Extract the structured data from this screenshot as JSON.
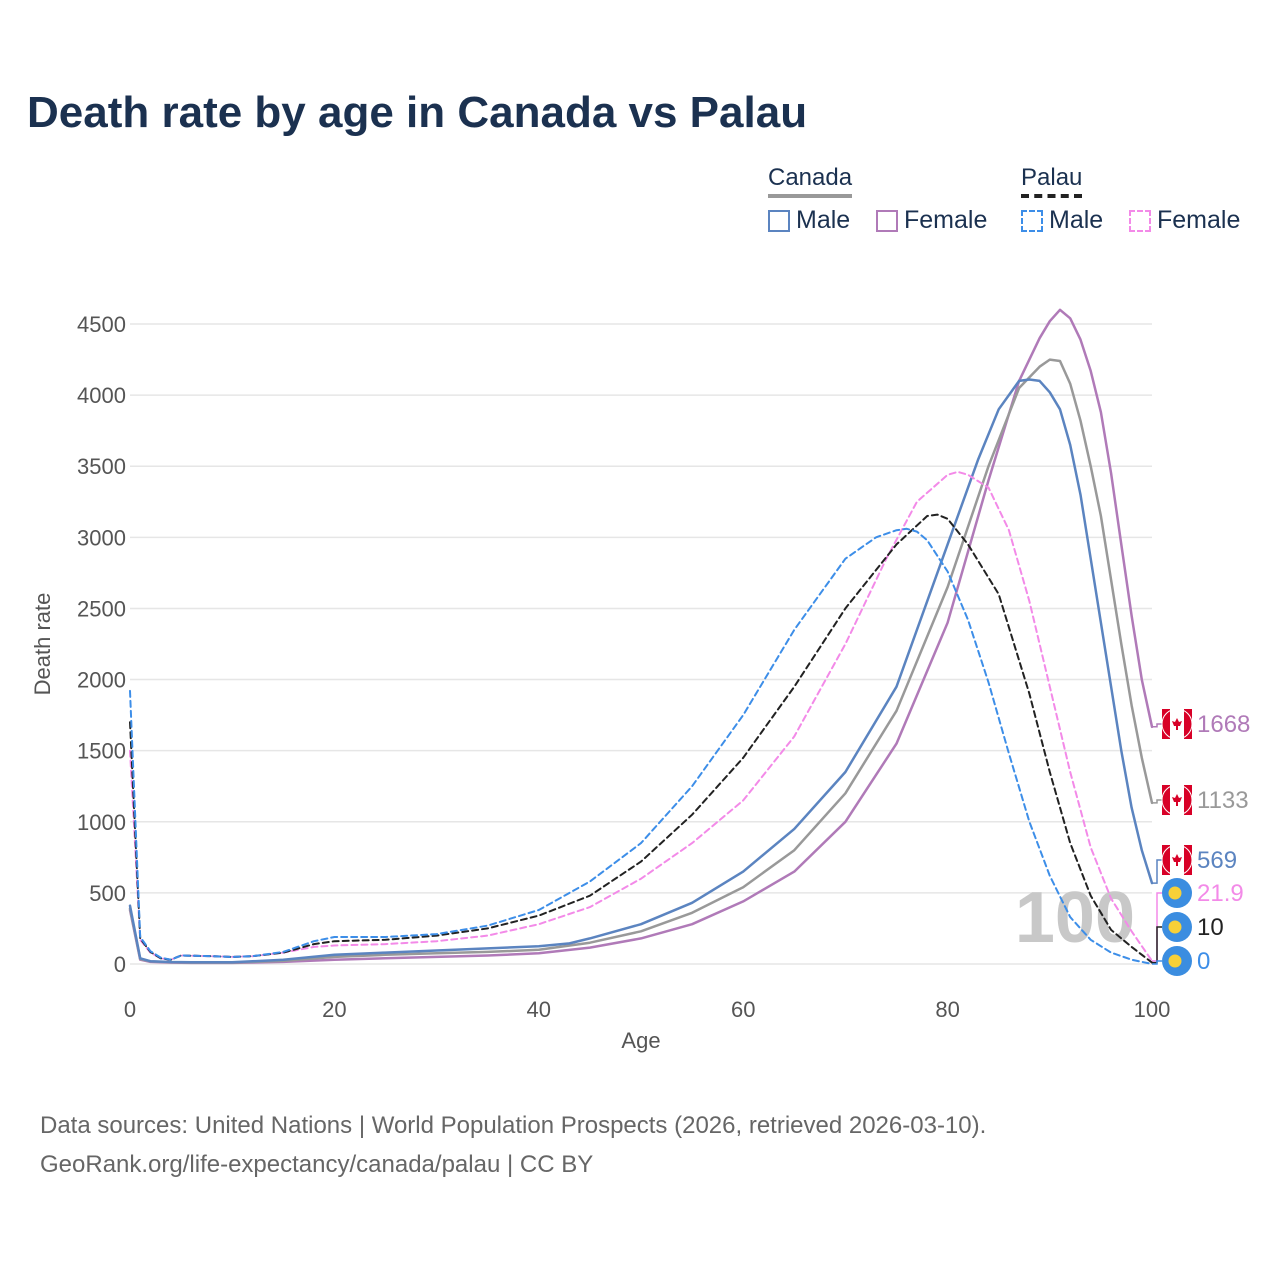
{
  "title": "Death rate by age in Canada vs Palau",
  "legend": {
    "groups": [
      {
        "label": "Canada",
        "style": "solid"
      },
      {
        "label": "Palau",
        "style": "dashed"
      }
    ],
    "items": [
      {
        "group": "Canada",
        "label": "Male",
        "color": "#5b84c0"
      },
      {
        "group": "Canada",
        "label": "Female",
        "color": "#b07ab8"
      },
      {
        "group": "Palau",
        "label": "Male",
        "color": "#3d8ee8"
      },
      {
        "group": "Palau",
        "label": "Female",
        "color": "#f38ae8"
      }
    ]
  },
  "watermark": "100",
  "source": {
    "line1": "Data sources: United Nations | World Population Prospects (2026, retrieved 2026-03-10).",
    "line2": "GeoRank.org/life-expectancy/canada/palau | CC BY"
  },
  "chart_data": {
    "type": "line",
    "xlabel": "Age",
    "ylabel": "Death rate",
    "xlim": [
      0,
      100
    ],
    "ylim": [
      0,
      4700
    ],
    "xticks": [
      0,
      20,
      40,
      60,
      80,
      100
    ],
    "yticks": [
      0,
      500,
      1000,
      1500,
      2000,
      2500,
      3000,
      3500,
      4000,
      4500
    ],
    "grid": true,
    "series": [
      {
        "name": "Canada Female",
        "country": "Canada",
        "sex": "Female",
        "color": "#b07ab8",
        "dashed": false,
        "end_label": "1668",
        "flag": "canada",
        "x": [
          0,
          1,
          2,
          4,
          6,
          10,
          15,
          20,
          25,
          30,
          35,
          40,
          45,
          50,
          55,
          60,
          65,
          70,
          75,
          80,
          84,
          87,
          89,
          90,
          91,
          92,
          93,
          94,
          95,
          96,
          97,
          98,
          99,
          100
        ],
        "y": [
          380,
          30,
          15,
          10,
          8,
          8,
          15,
          30,
          40,
          50,
          60,
          75,
          115,
          180,
          280,
          440,
          650,
          1000,
          1550,
          2400,
          3400,
          4100,
          4400,
          4520,
          4600,
          4540,
          4390,
          4170,
          3880,
          3450,
          2950,
          2450,
          2000,
          1668
        ]
      },
      {
        "name": "Canada Total",
        "country": "Canada",
        "sex": "Total",
        "color": "#999999",
        "dashed": false,
        "end_label": "1133",
        "flag": "canada",
        "x": [
          0,
          1,
          2,
          4,
          6,
          10,
          15,
          20,
          25,
          30,
          35,
          40,
          45,
          50,
          55,
          60,
          65,
          70,
          75,
          80,
          84,
          87,
          89,
          90,
          91,
          92,
          93,
          94,
          95,
          96,
          97,
          98,
          99,
          100
        ],
        "y": [
          390,
          35,
          18,
          12,
          10,
          10,
          22,
          50,
          65,
          75,
          85,
          100,
          150,
          230,
          360,
          540,
          800,
          1200,
          1780,
          2650,
          3500,
          4050,
          4200,
          4250,
          4240,
          4080,
          3820,
          3500,
          3150,
          2700,
          2250,
          1820,
          1450,
          1133
        ]
      },
      {
        "name": "Canada Male",
        "country": "Canada",
        "sex": "Male",
        "color": "#5b84c0",
        "dashed": false,
        "end_label": "569",
        "flag": "canada",
        "x": [
          0,
          1,
          2,
          4,
          6,
          10,
          15,
          20,
          25,
          30,
          35,
          40,
          43,
          45,
          50,
          55,
          60,
          65,
          70,
          75,
          80,
          83,
          85,
          87,
          88,
          89,
          90,
          91,
          92,
          93,
          94,
          95,
          96,
          97,
          98,
          99,
          100
        ],
        "y": [
          410,
          40,
          20,
          14,
          12,
          12,
          30,
          65,
          80,
          95,
          110,
          125,
          145,
          180,
          280,
          430,
          650,
          950,
          1350,
          1950,
          2950,
          3550,
          3900,
          4100,
          4110,
          4100,
          4020,
          3900,
          3650,
          3300,
          2850,
          2400,
          1950,
          1500,
          1100,
          800,
          569
        ]
      },
      {
        "name": "Palau Female",
        "country": "Palau",
        "sex": "Female",
        "color": "#f38ae8",
        "dashed": true,
        "end_label": "21.9",
        "flag": "palau",
        "x": [
          0,
          1,
          2,
          3,
          4,
          5,
          8,
          10,
          12,
          15,
          18,
          20,
          25,
          30,
          35,
          40,
          45,
          50,
          55,
          60,
          65,
          70,
          74,
          77,
          80,
          81,
          82,
          84,
          86,
          88,
          90,
          92,
          94,
          96,
          98,
          100
        ],
        "y": [
          1500,
          170,
          80,
          40,
          30,
          60,
          55,
          50,
          55,
          80,
          120,
          130,
          140,
          160,
          200,
          280,
          400,
          600,
          850,
          1150,
          1600,
          2250,
          2850,
          3250,
          3440,
          3460,
          3440,
          3350,
          3050,
          2550,
          1950,
          1350,
          820,
          460,
          230,
          21.9
        ]
      },
      {
        "name": "Palau Total",
        "country": "Palau",
        "sex": "Total",
        "color": "#222222",
        "dashed": true,
        "end_label": "10",
        "flag": "palau",
        "x": [
          0,
          1,
          2,
          3,
          4,
          5,
          8,
          10,
          12,
          15,
          18,
          20,
          25,
          30,
          35,
          40,
          45,
          50,
          55,
          60,
          65,
          70,
          75,
          78,
          79,
          80,
          82,
          85,
          88,
          90,
          92,
          94,
          96,
          98,
          100
        ],
        "y": [
          1700,
          180,
          85,
          40,
          30,
          60,
          55,
          50,
          55,
          80,
          140,
          160,
          170,
          200,
          250,
          340,
          480,
          720,
          1050,
          1450,
          1950,
          2500,
          2950,
          3150,
          3160,
          3130,
          2950,
          2600,
          1900,
          1350,
          850,
          480,
          240,
          120,
          10
        ]
      },
      {
        "name": "Palau Male",
        "country": "Palau",
        "sex": "Male",
        "color": "#3d8ee8",
        "dashed": true,
        "end_label": "0",
        "flag": "palau",
        "x": [
          0,
          1,
          2,
          3,
          4,
          5,
          8,
          10,
          12,
          15,
          18,
          20,
          25,
          30,
          35,
          40,
          45,
          50,
          55,
          60,
          65,
          70,
          73,
          75,
          76,
          77,
          78,
          80,
          82,
          84,
          86,
          88,
          90,
          92,
          94,
          96,
          98,
          100
        ],
        "y": [
          1920,
          190,
          90,
          45,
          30,
          60,
          55,
          50,
          55,
          85,
          160,
          190,
          190,
          210,
          270,
          380,
          580,
          850,
          1250,
          1750,
          2350,
          2850,
          3000,
          3050,
          3060,
          3040,
          2980,
          2760,
          2420,
          1980,
          1480,
          1000,
          620,
          330,
          170,
          80,
          30,
          0
        ]
      }
    ]
  }
}
